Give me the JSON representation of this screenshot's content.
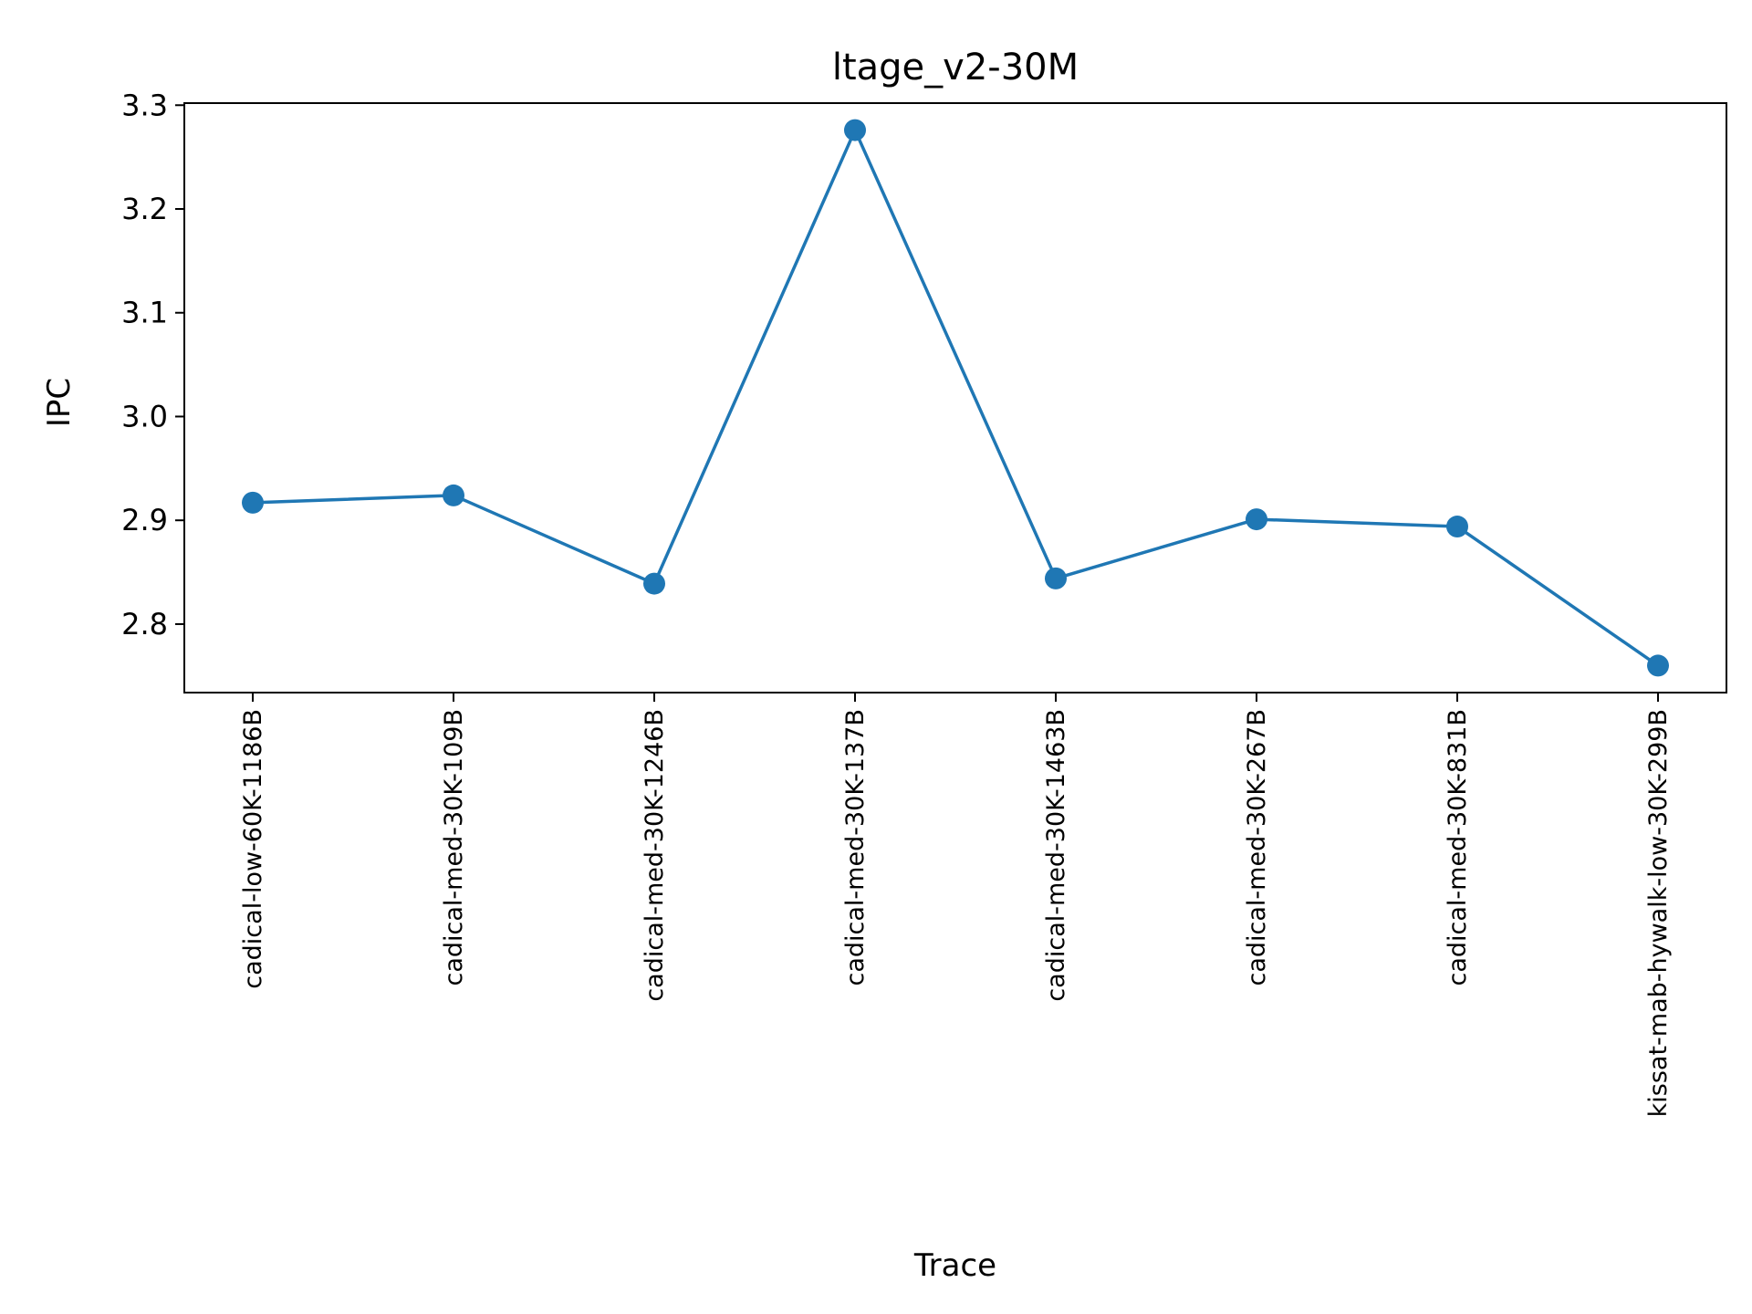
{
  "chart_data": {
    "type": "line",
    "title": "ltage_v2-30M",
    "xlabel": "Trace",
    "ylabel": "IPC",
    "categories": [
      "cadical-low-60K-1186B",
      "cadical-med-30K-109B",
      "cadical-med-30K-1246B",
      "cadical-med-30K-137B",
      "cadical-med-30K-1463B",
      "cadical-med-30K-267B",
      "cadical-med-30K-831B",
      "kissat-mab-hywalk-low-30K-299B"
    ],
    "series": [
      {
        "values": [
          2.917,
          2.924,
          2.839,
          3.276,
          2.844,
          2.901,
          2.894,
          2.76
        ],
        "color": "#1f77b4",
        "marker": "circle"
      }
    ],
    "yticks": [
      "2.8",
      "2.9",
      "3.0",
      "3.1",
      "3.2",
      "3.3"
    ],
    "ylim": [
      2.734,
      3.302
    ],
    "grid": false,
    "legend": "none"
  }
}
